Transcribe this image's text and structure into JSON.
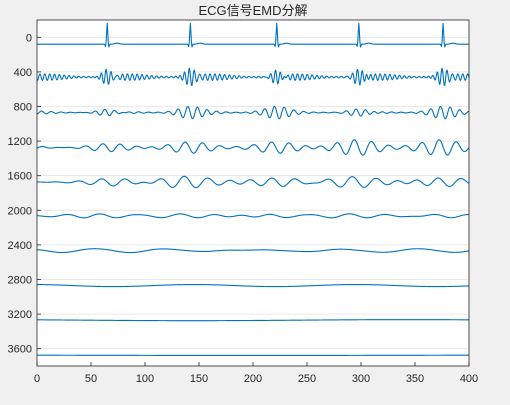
{
  "chart_data": {
    "type": "line",
    "title": "ECG信号EMD分解",
    "xlabel": "",
    "ylabel": "",
    "xlim": [
      0,
      400
    ],
    "ylim": [
      -200,
      3800
    ],
    "y_reversed": true,
    "grid": {
      "x": false,
      "y": true
    },
    "x_ticks": [
      0,
      50,
      100,
      150,
      200,
      250,
      300,
      350,
      400
    ],
    "x_tick_labels": [
      "0",
      "50",
      "100",
      "150",
      "200",
      "250",
      "300",
      "350",
      "400"
    ],
    "y_ticks": [
      0,
      400,
      800,
      1200,
      1600,
      2000,
      2400,
      2800,
      3200,
      3600
    ],
    "y_tick_labels": [
      "0",
      "400",
      "800",
      "1200",
      "1600",
      "2000",
      "2400",
      "2800",
      "3200",
      "3600"
    ],
    "line_color": "#0072bd",
    "beat_positions": [
      65,
      142,
      222,
      298,
      376
    ],
    "series": [
      {
        "offset": 80,
        "kind": "ecg",
        "amplitude": 240
      },
      {
        "offset": 460,
        "kind": "imf",
        "amplitude": 110,
        "period": 4.5
      },
      {
        "offset": 870,
        "kind": "imf",
        "amplitude": 55,
        "period": 9
      },
      {
        "offset": 1275,
        "kind": "imf",
        "amplitude": 70,
        "period": 16
      },
      {
        "offset": 1675,
        "kind": "imf",
        "amplitude": 55,
        "period": 22
      },
      {
        "offset": 2065,
        "kind": "imf",
        "amplitude": 25,
        "period": 32
      },
      {
        "offset": 2465,
        "kind": "imf",
        "amplitude": 20,
        "period": 60
      },
      {
        "offset": 2870,
        "kind": "trend",
        "amplitude": 12,
        "period": 150
      },
      {
        "offset": 3270,
        "kind": "trend",
        "amplitude": 6,
        "period": 400
      },
      {
        "offset": 3675,
        "kind": "trend",
        "amplitude": 3,
        "period": 800
      }
    ]
  }
}
